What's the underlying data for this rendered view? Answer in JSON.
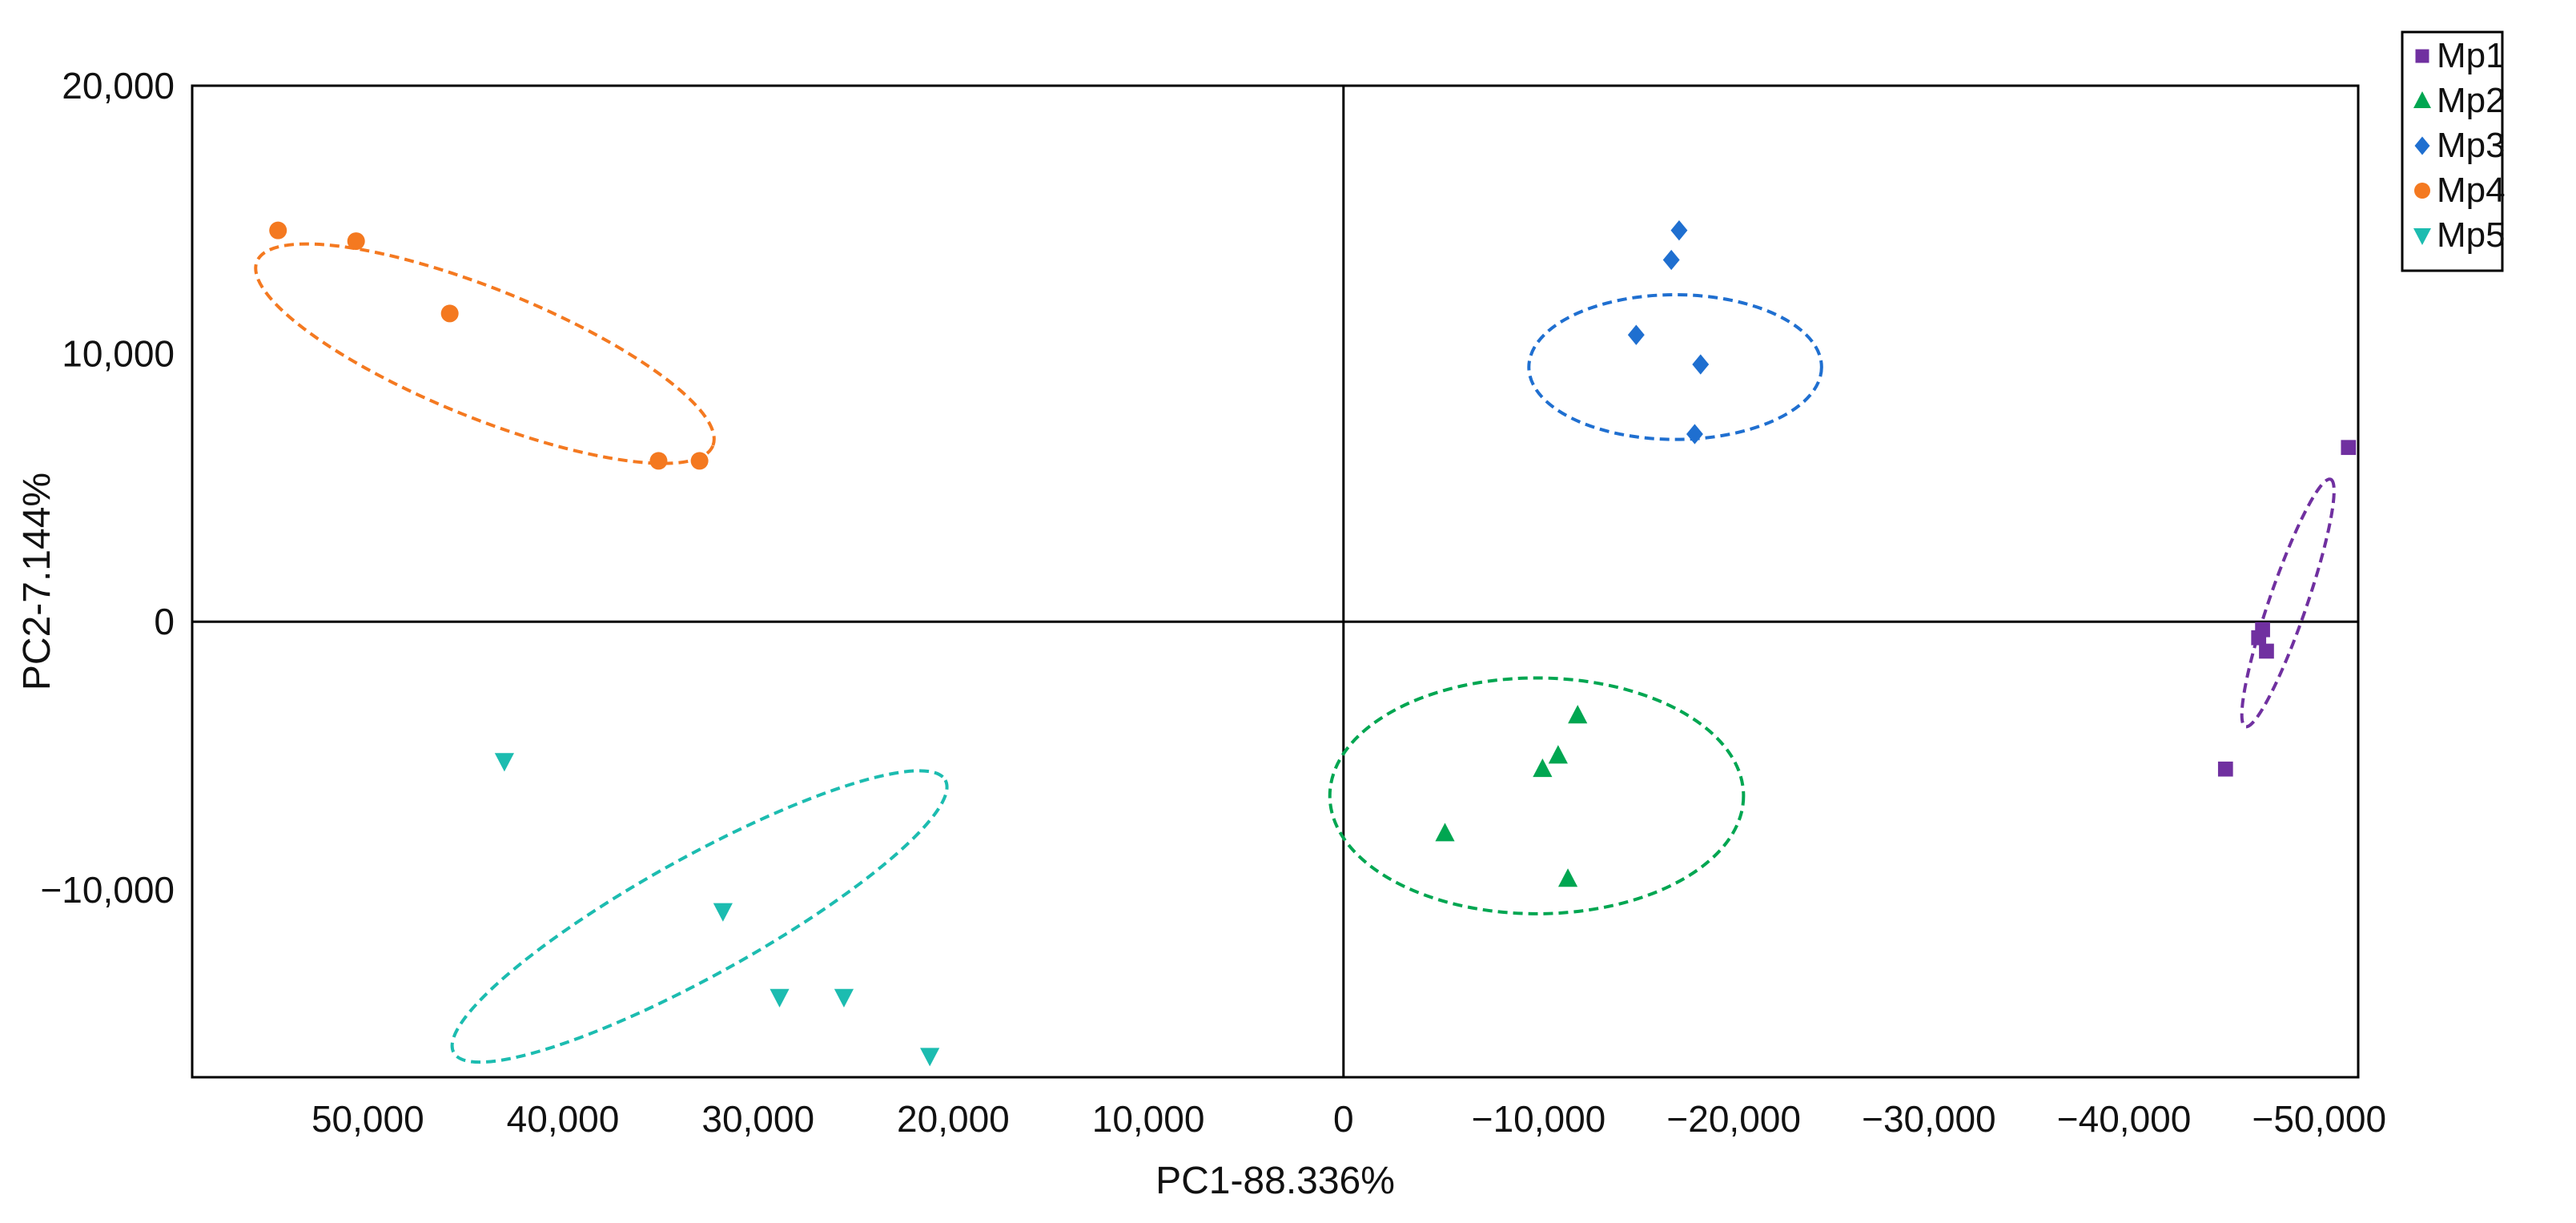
{
  "chart_data": {
    "type": "scatter",
    "xlabel": "PC1-88.336%",
    "ylabel": "PC2-7.144%",
    "x_reversed": true,
    "xlim": [
      59000,
      -52000
    ],
    "ylim": [
      -17000,
      20000
    ],
    "grid": false,
    "zero_lines": true,
    "legend_position": "top-right, outside plot",
    "x_ticks": [
      50000,
      40000,
      30000,
      20000,
      10000,
      0,
      -10000,
      -20000,
      -30000,
      -40000,
      -50000
    ],
    "x_tick_labels": [
      "50,000",
      "40,000",
      "30,000",
      "20,000",
      "10,000",
      "0",
      "−10,000",
      "−20,000",
      "−30,000",
      "−40,000",
      "−50,000"
    ],
    "y_ticks": [
      20000,
      10000,
      0,
      -10000
    ],
    "y_tick_labels": [
      "20,000",
      "10,000",
      "0",
      "−10,000"
    ],
    "series": [
      {
        "name": "Mp1",
        "marker": "square",
        "color": "#7030A0",
        "points": [
          [
            -51500,
            6500
          ],
          [
            -46900,
            -600
          ],
          [
            -47100,
            -300
          ],
          [
            -47300,
            -1100
          ],
          [
            -45200,
            -5500
          ]
        ],
        "ellipse": {
          "cx": -48400,
          "cy": 700,
          "rx": 6700,
          "ry": 700,
          "angle_deg": 71
        }
      },
      {
        "name": "Mp2",
        "marker": "triangle-up",
        "color": "#00A651",
        "points": [
          [
            -5200,
            -7900
          ],
          [
            -10200,
            -5500
          ],
          [
            -11000,
            -5000
          ],
          [
            -12000,
            -3500
          ],
          [
            -11500,
            -9600
          ]
        ],
        "ellipse": {
          "cx": -9900,
          "cy": -6500,
          "rx": 10600,
          "ry": 4400,
          "angle_deg": 0
        }
      },
      {
        "name": "Mp3",
        "marker": "diamond",
        "color": "#1F6FD0",
        "points": [
          [
            -17200,
            14600
          ],
          [
            -16800,
            13500
          ],
          [
            -15000,
            10700
          ],
          [
            -18300,
            9600
          ],
          [
            -18000,
            7000
          ]
        ],
        "ellipse": {
          "cx": -17000,
          "cy": 9500,
          "rx": 7500,
          "ry": 2700,
          "angle_deg": 0
        }
      },
      {
        "name": "Mp4",
        "marker": "circle",
        "color": "#F47920",
        "points": [
          [
            54600,
            14600
          ],
          [
            50600,
            14200
          ],
          [
            45800,
            11500
          ],
          [
            35100,
            6000
          ],
          [
            33000,
            6000
          ]
        ],
        "ellipse": {
          "cx": 44000,
          "cy": 10000,
          "rx": 12600,
          "ry": 2400,
          "angle_deg": -22
        }
      },
      {
        "name": "Mp5",
        "marker": "triangle-down",
        "color": "#1CBCB0",
        "points": [
          [
            43000,
            -5200
          ],
          [
            31800,
            -10800
          ],
          [
            28900,
            -14000
          ],
          [
            25600,
            -14000
          ],
          [
            21200,
            -16200
          ]
        ],
        "ellipse": {
          "cx": 33000,
          "cy": -11000,
          "rx": 14400,
          "ry": 2200,
          "angle_deg": 29
        }
      }
    ]
  }
}
